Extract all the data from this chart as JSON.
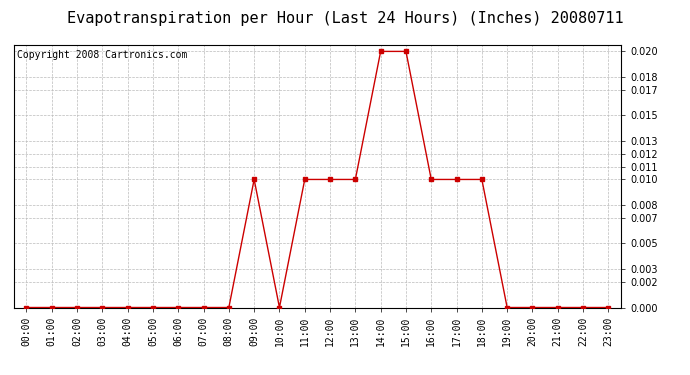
{
  "title": "Evapotranspiration per Hour (Last 24 Hours) (Inches) 20080711",
  "copyright": "Copyright 2008 Cartronics.com",
  "hours": [
    "00:00",
    "01:00",
    "02:00",
    "03:00",
    "04:00",
    "05:00",
    "06:00",
    "07:00",
    "08:00",
    "09:00",
    "10:00",
    "11:00",
    "12:00",
    "13:00",
    "14:00",
    "15:00",
    "16:00",
    "17:00",
    "18:00",
    "19:00",
    "20:00",
    "21:00",
    "22:00",
    "23:00"
  ],
  "values": [
    0.0,
    0.0,
    0.0,
    0.0,
    0.0,
    0.0,
    0.0,
    0.0,
    0.0,
    0.01,
    0.0,
    0.01,
    0.01,
    0.01,
    0.02,
    0.02,
    0.01,
    0.01,
    0.01,
    0.0,
    0.0,
    0.0,
    0.0,
    0.0
  ],
  "line_color": "#cc0000",
  "marker": "s",
  "marker_size": 2.5,
  "background_color": "#ffffff",
  "plot_bg_color": "#ffffff",
  "grid_color": "#bbbbbb",
  "ylim": [
    0.0,
    0.0205
  ],
  "yticks": [
    0.0,
    0.002,
    0.003,
    0.005,
    0.007,
    0.008,
    0.01,
    0.011,
    0.012,
    0.013,
    0.015,
    0.017,
    0.018,
    0.02
  ],
  "title_fontsize": 11,
  "copyright_fontsize": 7,
  "tick_fontsize": 7
}
